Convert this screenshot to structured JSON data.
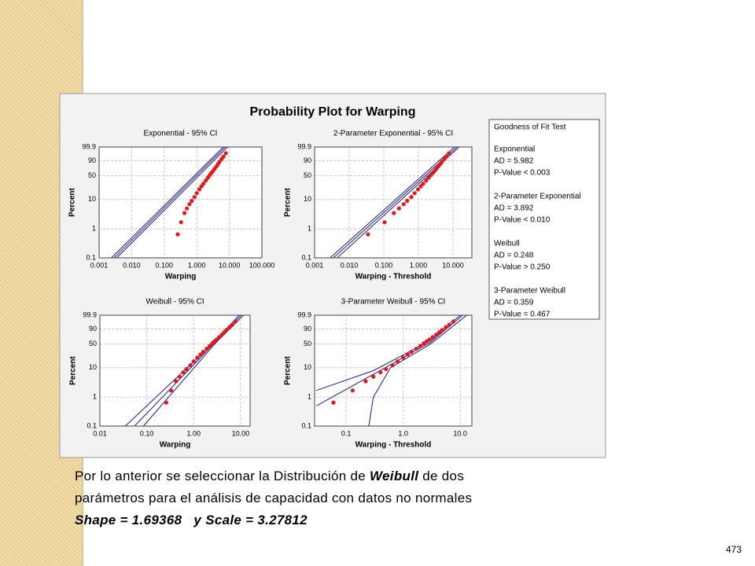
{
  "figure_title": "Probability Plot for Warping",
  "chart_data": [
    {
      "type": "probability",
      "title": "Exponential - 95% CI",
      "xlabel": "Warping",
      "ylabel": "Percent",
      "xscale": "log",
      "yscale": "weibull",
      "grid": true,
      "xlim": [
        0.001,
        100
      ],
      "ylim": [
        0.1,
        99.9
      ],
      "xticks": [
        {
          "value": 0.001,
          "label": "0.001"
        },
        {
          "value": 0.01,
          "label": "0.010"
        },
        {
          "value": 0.1,
          "label": "0.100"
        },
        {
          "value": 1,
          "label": "1.000"
        },
        {
          "value": 10,
          "label": "10.000"
        },
        {
          "value": 100,
          "label": "100.000"
        }
      ],
      "yticks": [
        0.1,
        1,
        10,
        50,
        90,
        99.9
      ],
      "series": [
        {
          "color": "#e0191f",
          "x": [
            0.26,
            0.33,
            0.42,
            0.5,
            0.6,
            0.7,
            0.85,
            1.0,
            1.2,
            1.4,
            1.6,
            1.9,
            2.2,
            2.5,
            2.8,
            3.1,
            3.5,
            4.0,
            4.5,
            5.0,
            5.8,
            6.6,
            7.8
          ],
          "values": [
            0.65,
            1.7,
            3.5,
            5,
            7,
            9,
            12,
            16,
            21,
            26,
            31,
            38,
            45,
            52,
            58,
            63,
            70,
            77,
            83,
            88,
            93,
            96,
            98.5
          ]
        }
      ],
      "lines": [
        {
          "color": "#1a1a8c",
          "x": [
            0.0029,
            7.5
          ],
          "values": [
            0.1,
            99.9
          ]
        },
        {
          "color": "#1a1a8c",
          "x": [
            0.0024,
            6.5
          ],
          "values": [
            0.1,
            99.9
          ]
        },
        {
          "color": "#1a1a8c",
          "x": [
            0.0035,
            8.8
          ],
          "values": [
            0.1,
            99.9
          ]
        }
      ]
    },
    {
      "type": "probability",
      "title": "2-Parameter Exponential - 95% CI",
      "xlabel": "Warping - Threshold",
      "ylabel": "Percent",
      "xscale": "log",
      "yscale": "weibull",
      "grid": true,
      "xlim": [
        0.001,
        35
      ],
      "ylim": [
        0.1,
        99.9
      ],
      "xticks": [
        {
          "value": 0.001,
          "label": "0.001"
        },
        {
          "value": 0.01,
          "label": "0.010"
        },
        {
          "value": 0.1,
          "label": "0.100"
        },
        {
          "value": 1,
          "label": "1.000"
        },
        {
          "value": 10,
          "label": "10.000"
        }
      ],
      "yticks": [
        0.1,
        1,
        10,
        50,
        90,
        99.9
      ],
      "series": [
        {
          "color": "#e0191f",
          "x": [
            0.035,
            0.105,
            0.195,
            0.275,
            0.375,
            0.475,
            0.625,
            0.775,
            0.975,
            1.175,
            1.375,
            1.675,
            1.975,
            2.275,
            2.575,
            2.875,
            3.275,
            3.775,
            4.275,
            4.775,
            5.575,
            6.375,
            7.575
          ],
          "values": [
            0.65,
            1.7,
            3.5,
            5,
            7,
            9,
            12,
            16,
            21,
            26,
            31,
            38,
            45,
            52,
            58,
            63,
            70,
            77,
            83,
            88,
            93,
            96,
            98.5
          ]
        }
      ],
      "lines": [
        {
          "color": "#1a1a8c",
          "x": [
            0.0035,
            13
          ],
          "values": [
            0.1,
            99.9
          ]
        },
        {
          "color": "#1a1a8c",
          "x": [
            0.0028,
            11
          ],
          "values": [
            0.1,
            99.9
          ]
        },
        {
          "color": "#1a1a8c",
          "x": [
            0.0045,
            15
          ],
          "values": [
            0.1,
            99.9
          ]
        }
      ]
    },
    {
      "type": "probability",
      "title": "Weibull - 95% CI",
      "xlabel": "Warping",
      "ylabel": "Percent",
      "xscale": "log",
      "yscale": "weibull",
      "grid": true,
      "xlim": [
        0.01,
        16
      ],
      "ylim": [
        0.1,
        99.9
      ],
      "xticks": [
        {
          "value": 0.01,
          "label": "0.01"
        },
        {
          "value": 0.1,
          "label": "0.10"
        },
        {
          "value": 1,
          "label": "1.00"
        },
        {
          "value": 10,
          "label": "10.00"
        }
      ],
      "yticks": [
        0.1,
        1,
        10,
        50,
        90,
        99.9
      ],
      "series": [
        {
          "color": "#e0191f",
          "x": [
            0.26,
            0.33,
            0.42,
            0.5,
            0.6,
            0.7,
            0.85,
            1.0,
            1.2,
            1.4,
            1.6,
            1.9,
            2.2,
            2.5,
            2.8,
            3.1,
            3.5,
            4.0,
            4.5,
            5.0,
            5.8,
            6.6,
            7.8
          ],
          "values": [
            0.65,
            1.7,
            3.5,
            5,
            7,
            9,
            12,
            16,
            21,
            26,
            31,
            38,
            45,
            52,
            58,
            63,
            70,
            77,
            83,
            88,
            93,
            96,
            98.5
          ]
        }
      ],
      "lines": [
        {
          "color": "#1a1a8c",
          "x": [
            0.055,
            2.64,
            10.3
          ],
          "values": [
            0.1,
            50,
            99.9
          ]
        },
        {
          "color": "#1a1a8c",
          "x": [
            0.035,
            2.5,
            9.3
          ],
          "values": [
            0.1,
            50,
            99.9
          ]
        },
        {
          "color": "#1a1a8c",
          "x": [
            0.085,
            2.8,
            11.5
          ],
          "values": [
            0.1,
            50,
            99.9
          ]
        }
      ]
    },
    {
      "type": "probability",
      "title": "3-Parameter Weibull - 95% CI",
      "xlabel": "Warping - Threshold",
      "ylabel": "Percent",
      "xscale": "log",
      "yscale": "weibull",
      "grid": true,
      "xlim": [
        0.028,
        16
      ],
      "ylim": [
        0.1,
        99.9
      ],
      "xticks": [
        0.1,
        {
          "value": 1,
          "label": "1.0"
        },
        {
          "value": 10,
          "label": "10.0"
        }
      ],
      "yticks": [
        0.1,
        1,
        10,
        50,
        90,
        99.9
      ],
      "series": [
        {
          "color": "#e0191f",
          "x": [
            0.06,
            0.13,
            0.22,
            0.3,
            0.4,
            0.5,
            0.65,
            0.8,
            1.0,
            1.2,
            1.4,
            1.7,
            2.0,
            2.3,
            2.6,
            2.9,
            3.3,
            3.8,
            4.3,
            4.8,
            5.6,
            6.4,
            7.6
          ],
          "values": [
            0.65,
            1.7,
            3.5,
            5,
            7,
            9,
            12,
            16,
            21,
            26,
            31,
            38,
            45,
            52,
            58,
            63,
            70,
            77,
            83,
            88,
            93,
            96,
            98.5
          ]
        }
      ],
      "lines": [
        {
          "color": "#1a1a8c",
          "x": [
            0.03,
            0.3,
            3,
            11
          ],
          "values": [
            0.5,
            6,
            55,
            99.9
          ]
        },
        {
          "color": "#1a1a8c",
          "x": [
            0.03,
            0.3,
            3,
            10
          ],
          "values": [
            1.7,
            8,
            60,
            99.9
          ]
        },
        {
          "color": "#1a1a8c",
          "x": [
            0.25,
            0.3,
            0.6,
            3,
            13
          ],
          "values": [
            0.1,
            1,
            10,
            50,
            99.9
          ]
        }
      ]
    }
  ],
  "goodness_of_fit": {
    "title": "Goodness of Fit Test",
    "tests": [
      {
        "name": "Exponential",
        "lines": [
          "AD = 5.982",
          "P-Value < 0.003"
        ]
      },
      {
        "name": "2-Parameter Exponential",
        "lines": [
          "AD = 3.892",
          "P-Value < 0.010"
        ]
      },
      {
        "name": "Weibull",
        "lines": [
          "AD = 0.248",
          "P-Value > 0.250"
        ]
      },
      {
        "name": "3-Parameter Weibull",
        "lines": [
          "AD = 0.359",
          "P-Value = 0.467"
        ]
      }
    ]
  },
  "caption": [
    [
      {
        "text": "Por lo anterior se seleccionar la Distribución de ",
        "style": "normal"
      },
      {
        "text": "Weibull",
        "style": "bold-italic"
      },
      {
        "text": " de dos",
        "style": "normal"
      }
    ],
    [
      {
        "text": "parámetros para el análisis de capacidad con datos no normales",
        "style": "normal"
      }
    ],
    [
      {
        "text": "Shape = 1.69368   y Scale = 3.27812",
        "style": "bold-italic"
      }
    ]
  ],
  "page_number": "473"
}
